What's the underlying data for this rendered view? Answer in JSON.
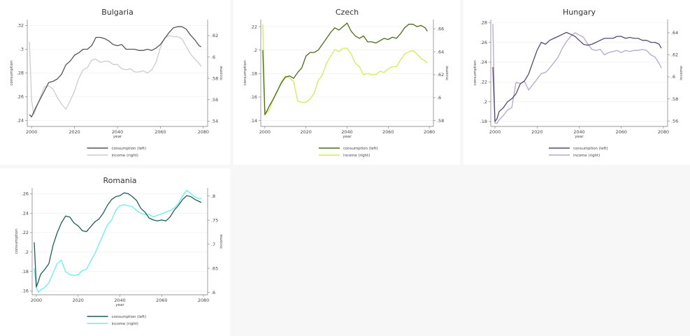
{
  "legend": {
    "left": "consumption (left)",
    "right": "income (right)"
  },
  "chart_data": [
    {
      "type": "line",
      "title": "Bulgaria",
      "xlabel": "year",
      "ylabel_left": "consumption",
      "ylabel_right": "income",
      "xlim": [
        1998,
        2082
      ],
      "xticks": [
        2000,
        2020,
        2040,
        2060,
        2080
      ],
      "ylim_left": [
        0.235,
        0.325
      ],
      "yticks_left": [
        0.24,
        0.26,
        0.28,
        0.3,
        0.32
      ],
      "ytick_labels_left": [
        ".24",
        ".26",
        ".28",
        ".3",
        ".32"
      ],
      "ylim_right": [
        0.535,
        0.635
      ],
      "yticks_right": [
        0.54,
        0.56,
        0.58,
        0.6,
        0.62
      ],
      "ytick_labels_right": [
        ".54",
        ".56",
        ".58",
        ".6",
        ".62"
      ],
      "colors": {
        "left": "#555555",
        "right": "#cccccc"
      },
      "series": [
        {
          "name": "consumption (left)",
          "axis": "left",
          "x": [
            1999,
            2000,
            2002,
            2004,
            2006,
            2008,
            2010,
            2012,
            2014,
            2016,
            2018,
            2020,
            2022,
            2024,
            2026,
            2028,
            2030,
            2032,
            2034,
            2036,
            2038,
            2040,
            2042,
            2044,
            2046,
            2048,
            2050,
            2052,
            2054,
            2056,
            2058,
            2060,
            2062,
            2064,
            2066,
            2068,
            2070,
            2072,
            2074,
            2076,
            2078,
            2079
          ],
          "values": [
            0.245,
            0.243,
            0.251,
            0.258,
            0.265,
            0.272,
            0.273,
            0.275,
            0.279,
            0.287,
            0.29,
            0.295,
            0.297,
            0.3,
            0.3,
            0.303,
            0.31,
            0.31,
            0.309,
            0.307,
            0.304,
            0.303,
            0.304,
            0.3,
            0.3,
            0.3,
            0.299,
            0.299,
            0.3,
            0.299,
            0.301,
            0.304,
            0.309,
            0.314,
            0.318,
            0.319,
            0.319,
            0.317,
            0.312,
            0.308,
            0.303,
            0.302
          ]
        },
        {
          "name": "income (right)",
          "axis": "right",
          "x": [
            1999,
            2000,
            2001,
            2002,
            2004,
            2006,
            2008,
            2010,
            2012,
            2014,
            2016,
            2018,
            2020,
            2022,
            2024,
            2026,
            2028,
            2030,
            2032,
            2034,
            2036,
            2038,
            2040,
            2042,
            2044,
            2046,
            2048,
            2050,
            2052,
            2054,
            2056,
            2058,
            2060,
            2062,
            2064,
            2066,
            2068,
            2070,
            2072,
            2074,
            2076,
            2078,
            2079
          ],
          "values": [
            0.614,
            0.56,
            0.546,
            0.551,
            0.562,
            0.572,
            0.573,
            0.57,
            0.562,
            0.556,
            0.551,
            0.559,
            0.568,
            0.58,
            0.588,
            0.59,
            0.597,
            0.598,
            0.595,
            0.596,
            0.596,
            0.593,
            0.593,
            0.589,
            0.588,
            0.589,
            0.586,
            0.586,
            0.587,
            0.585,
            0.588,
            0.595,
            0.609,
            0.618,
            0.62,
            0.619,
            0.619,
            0.617,
            0.61,
            0.603,
            0.598,
            0.594,
            0.591
          ]
        }
      ]
    },
    {
      "type": "line",
      "title": "Czech",
      "xlabel": "year",
      "ylabel_left": "consumption",
      "ylabel_right": "income",
      "xlim": [
        1998,
        2082
      ],
      "xticks": [
        2000,
        2020,
        2040,
        2060,
        2080
      ],
      "ylim_left": [
        0.135,
        0.226
      ],
      "yticks_left": [
        0.14,
        0.16,
        0.18,
        0.2,
        0.22
      ],
      "ytick_labels_left": [
        ".14",
        ".16",
        ".18",
        ".2",
        ".22"
      ],
      "ylim_right": [
        0.575,
        0.668
      ],
      "yticks_right": [
        0.58,
        0.6,
        0.62,
        0.64,
        0.66
      ],
      "ytick_labels_right": [
        ".58",
        ".6",
        ".62",
        ".64",
        ".66"
      ],
      "colors": {
        "left": "#4a6b1c",
        "right": "#ccee55"
      },
      "series": [
        {
          "name": "consumption (left)",
          "axis": "left",
          "x": [
            1999,
            2000,
            2001,
            2002,
            2004,
            2006,
            2008,
            2010,
            2012,
            2014,
            2016,
            2018,
            2020,
            2022,
            2024,
            2026,
            2028,
            2030,
            2032,
            2034,
            2036,
            2038,
            2040,
            2042,
            2044,
            2046,
            2048,
            2050,
            2052,
            2054,
            2056,
            2058,
            2060,
            2062,
            2064,
            2066,
            2068,
            2070,
            2072,
            2074,
            2076,
            2078,
            2079
          ],
          "values": [
            0.2,
            0.145,
            0.148,
            0.152,
            0.158,
            0.165,
            0.172,
            0.177,
            0.178,
            0.176,
            0.181,
            0.185,
            0.195,
            0.198,
            0.198,
            0.2,
            0.205,
            0.21,
            0.215,
            0.219,
            0.217,
            0.22,
            0.223,
            0.216,
            0.212,
            0.21,
            0.212,
            0.207,
            0.207,
            0.206,
            0.208,
            0.21,
            0.209,
            0.211,
            0.21,
            0.214,
            0.219,
            0.222,
            0.222,
            0.22,
            0.221,
            0.219,
            0.216
          ]
        },
        {
          "name": "income (right)",
          "axis": "right",
          "x": [
            1999,
            2000,
            2001,
            2002,
            2004,
            2006,
            2008,
            2010,
            2012,
            2014,
            2016,
            2018,
            2020,
            2022,
            2024,
            2026,
            2028,
            2030,
            2032,
            2034,
            2036,
            2038,
            2040,
            2042,
            2044,
            2046,
            2048,
            2050,
            2052,
            2054,
            2056,
            2058,
            2060,
            2062,
            2064,
            2066,
            2068,
            2070,
            2072,
            2074,
            2076,
            2078,
            2079
          ],
          "values": [
            0.664,
            0.59,
            0.587,
            0.589,
            0.598,
            0.605,
            0.614,
            0.619,
            0.617,
            0.614,
            0.597,
            0.596,
            0.596,
            0.599,
            0.604,
            0.615,
            0.62,
            0.63,
            0.636,
            0.642,
            0.64,
            0.643,
            0.643,
            0.638,
            0.63,
            0.627,
            0.62,
            0.621,
            0.62,
            0.62,
            0.623,
            0.622,
            0.625,
            0.627,
            0.627,
            0.633,
            0.638,
            0.64,
            0.641,
            0.638,
            0.634,
            0.632,
            0.63
          ]
        }
      ]
    },
    {
      "type": "line",
      "title": "Hungary",
      "xlabel": "year",
      "ylabel_left": "consumption",
      "ylabel_right": "income",
      "xlim": [
        1998,
        2082
      ],
      "xticks": [
        2000,
        2020,
        2040,
        2060,
        2080
      ],
      "ylim_left": [
        0.175,
        0.283
      ],
      "yticks_left": [
        0.18,
        0.2,
        0.22,
        0.24,
        0.26,
        0.28
      ],
      "ytick_labels_left": [
        ".18",
        ".2",
        ".22",
        ".24",
        ".26",
        ".28"
      ],
      "ylim_right": [
        0.555,
        0.652
      ],
      "yticks_right": [
        0.56,
        0.58,
        0.6,
        0.62,
        0.64
      ],
      "ytick_labels_right": [
        ".56",
        ".58",
        ".6",
        ".62",
        ".64"
      ],
      "colors": {
        "left": "#574a70",
        "right": "#b3a8cc"
      },
      "series": [
        {
          "name": "consumption (left)",
          "axis": "left",
          "x": [
            1999,
            2000,
            2001,
            2002,
            2004,
            2006,
            2008,
            2010,
            2012,
            2014,
            2016,
            2018,
            2020,
            2022,
            2024,
            2026,
            2028,
            2030,
            2032,
            2034,
            2036,
            2038,
            2040,
            2042,
            2044,
            2046,
            2048,
            2050,
            2052,
            2054,
            2056,
            2058,
            2060,
            2062,
            2064,
            2066,
            2068,
            2070,
            2072,
            2074,
            2076,
            2078,
            2079
          ],
          "values": [
            0.235,
            0.18,
            0.183,
            0.19,
            0.194,
            0.2,
            0.203,
            0.208,
            0.218,
            0.221,
            0.228,
            0.24,
            0.252,
            0.26,
            0.258,
            0.262,
            0.264,
            0.266,
            0.268,
            0.27,
            0.268,
            0.266,
            0.262,
            0.258,
            0.257,
            0.258,
            0.26,
            0.262,
            0.264,
            0.264,
            0.264,
            0.266,
            0.266,
            0.264,
            0.265,
            0.264,
            0.264,
            0.262,
            0.262,
            0.26,
            0.26,
            0.258,
            0.254
          ]
        },
        {
          "name": "income (right)",
          "axis": "right",
          "x": [
            1999,
            2000,
            2001,
            2002,
            2004,
            2006,
            2008,
            2010,
            2012,
            2014,
            2016,
            2018,
            2020,
            2022,
            2024,
            2026,
            2028,
            2030,
            2032,
            2034,
            2036,
            2038,
            2040,
            2042,
            2044,
            2046,
            2048,
            2050,
            2052,
            2054,
            2056,
            2058,
            2060,
            2062,
            2064,
            2066,
            2068,
            2070,
            2072,
            2074,
            2076,
            2078,
            2079
          ],
          "values": [
            0.648,
            0.558,
            0.558,
            0.561,
            0.565,
            0.57,
            0.572,
            0.595,
            0.594,
            0.596,
            0.588,
            0.593,
            0.598,
            0.603,
            0.604,
            0.608,
            0.613,
            0.618,
            0.626,
            0.632,
            0.637,
            0.64,
            0.638,
            0.636,
            0.63,
            0.625,
            0.624,
            0.625,
            0.62,
            0.622,
            0.623,
            0.624,
            0.622,
            0.624,
            0.623,
            0.624,
            0.624,
            0.625,
            0.624,
            0.62,
            0.618,
            0.612,
            0.608
          ]
        }
      ]
    },
    {
      "type": "line",
      "title": "Romania",
      "xlabel": "year",
      "ylabel_left": "consumption",
      "ylabel_right": "income",
      "xlim": [
        1998,
        2082
      ],
      "xticks": [
        2000,
        2020,
        2040,
        2060,
        2080
      ],
      "ylim_left": [
        0.156,
        0.266
      ],
      "yticks_left": [
        0.16,
        0.18,
        0.2,
        0.22,
        0.24,
        0.26
      ],
      "ytick_labels_left": [
        ".16",
        ".18",
        ".2",
        ".22",
        ".24",
        ".26"
      ],
      "ylim_right": [
        0.595,
        0.817
      ],
      "yticks_right": [
        0.6,
        0.65,
        0.7,
        0.75,
        0.8
      ],
      "ytick_labels_right": [
        ".6",
        ".65",
        ".7",
        ".75",
        ".8"
      ],
      "colors": {
        "left": "#1f5c5a",
        "right": "#66eeee"
      },
      "series": [
        {
          "name": "consumption (left)",
          "axis": "left",
          "x": [
            1999,
            2000,
            2001,
            2002,
            2004,
            2006,
            2008,
            2010,
            2012,
            2014,
            2016,
            2018,
            2020,
            2022,
            2024,
            2026,
            2028,
            2030,
            2032,
            2034,
            2036,
            2038,
            2040,
            2042,
            2044,
            2046,
            2048,
            2050,
            2052,
            2054,
            2056,
            2058,
            2060,
            2062,
            2064,
            2066,
            2068,
            2070,
            2072,
            2074,
            2076,
            2078,
            2079
          ],
          "values": [
            0.21,
            0.164,
            0.17,
            0.177,
            0.182,
            0.188,
            0.207,
            0.22,
            0.23,
            0.237,
            0.236,
            0.23,
            0.227,
            0.222,
            0.221,
            0.226,
            0.231,
            0.234,
            0.24,
            0.248,
            0.254,
            0.257,
            0.258,
            0.261,
            0.26,
            0.257,
            0.253,
            0.245,
            0.241,
            0.235,
            0.233,
            0.232,
            0.233,
            0.232,
            0.236,
            0.243,
            0.248,
            0.254,
            0.258,
            0.257,
            0.254,
            0.252,
            0.251
          ]
        },
        {
          "name": "income (right)",
          "axis": "right",
          "x": [
            1999,
            2000,
            2001,
            2002,
            2004,
            2006,
            2008,
            2010,
            2012,
            2014,
            2016,
            2018,
            2020,
            2022,
            2024,
            2026,
            2028,
            2030,
            2032,
            2034,
            2036,
            2038,
            2040,
            2042,
            2044,
            2046,
            2048,
            2050,
            2052,
            2054,
            2056,
            2058,
            2060,
            2062,
            2064,
            2066,
            2068,
            2070,
            2072,
            2074,
            2076,
            2078,
            2079
          ],
          "values": [
            0.65,
            0.61,
            0.6,
            0.605,
            0.61,
            0.62,
            0.64,
            0.66,
            0.667,
            0.643,
            0.637,
            0.635,
            0.637,
            0.645,
            0.648,
            0.665,
            0.68,
            0.7,
            0.72,
            0.74,
            0.75,
            0.77,
            0.78,
            0.782,
            0.78,
            0.778,
            0.77,
            0.764,
            0.762,
            0.762,
            0.757,
            0.76,
            0.763,
            0.767,
            0.77,
            0.775,
            0.785,
            0.8,
            0.812,
            0.805,
            0.798,
            0.795,
            0.795
          ]
        }
      ]
    }
  ]
}
